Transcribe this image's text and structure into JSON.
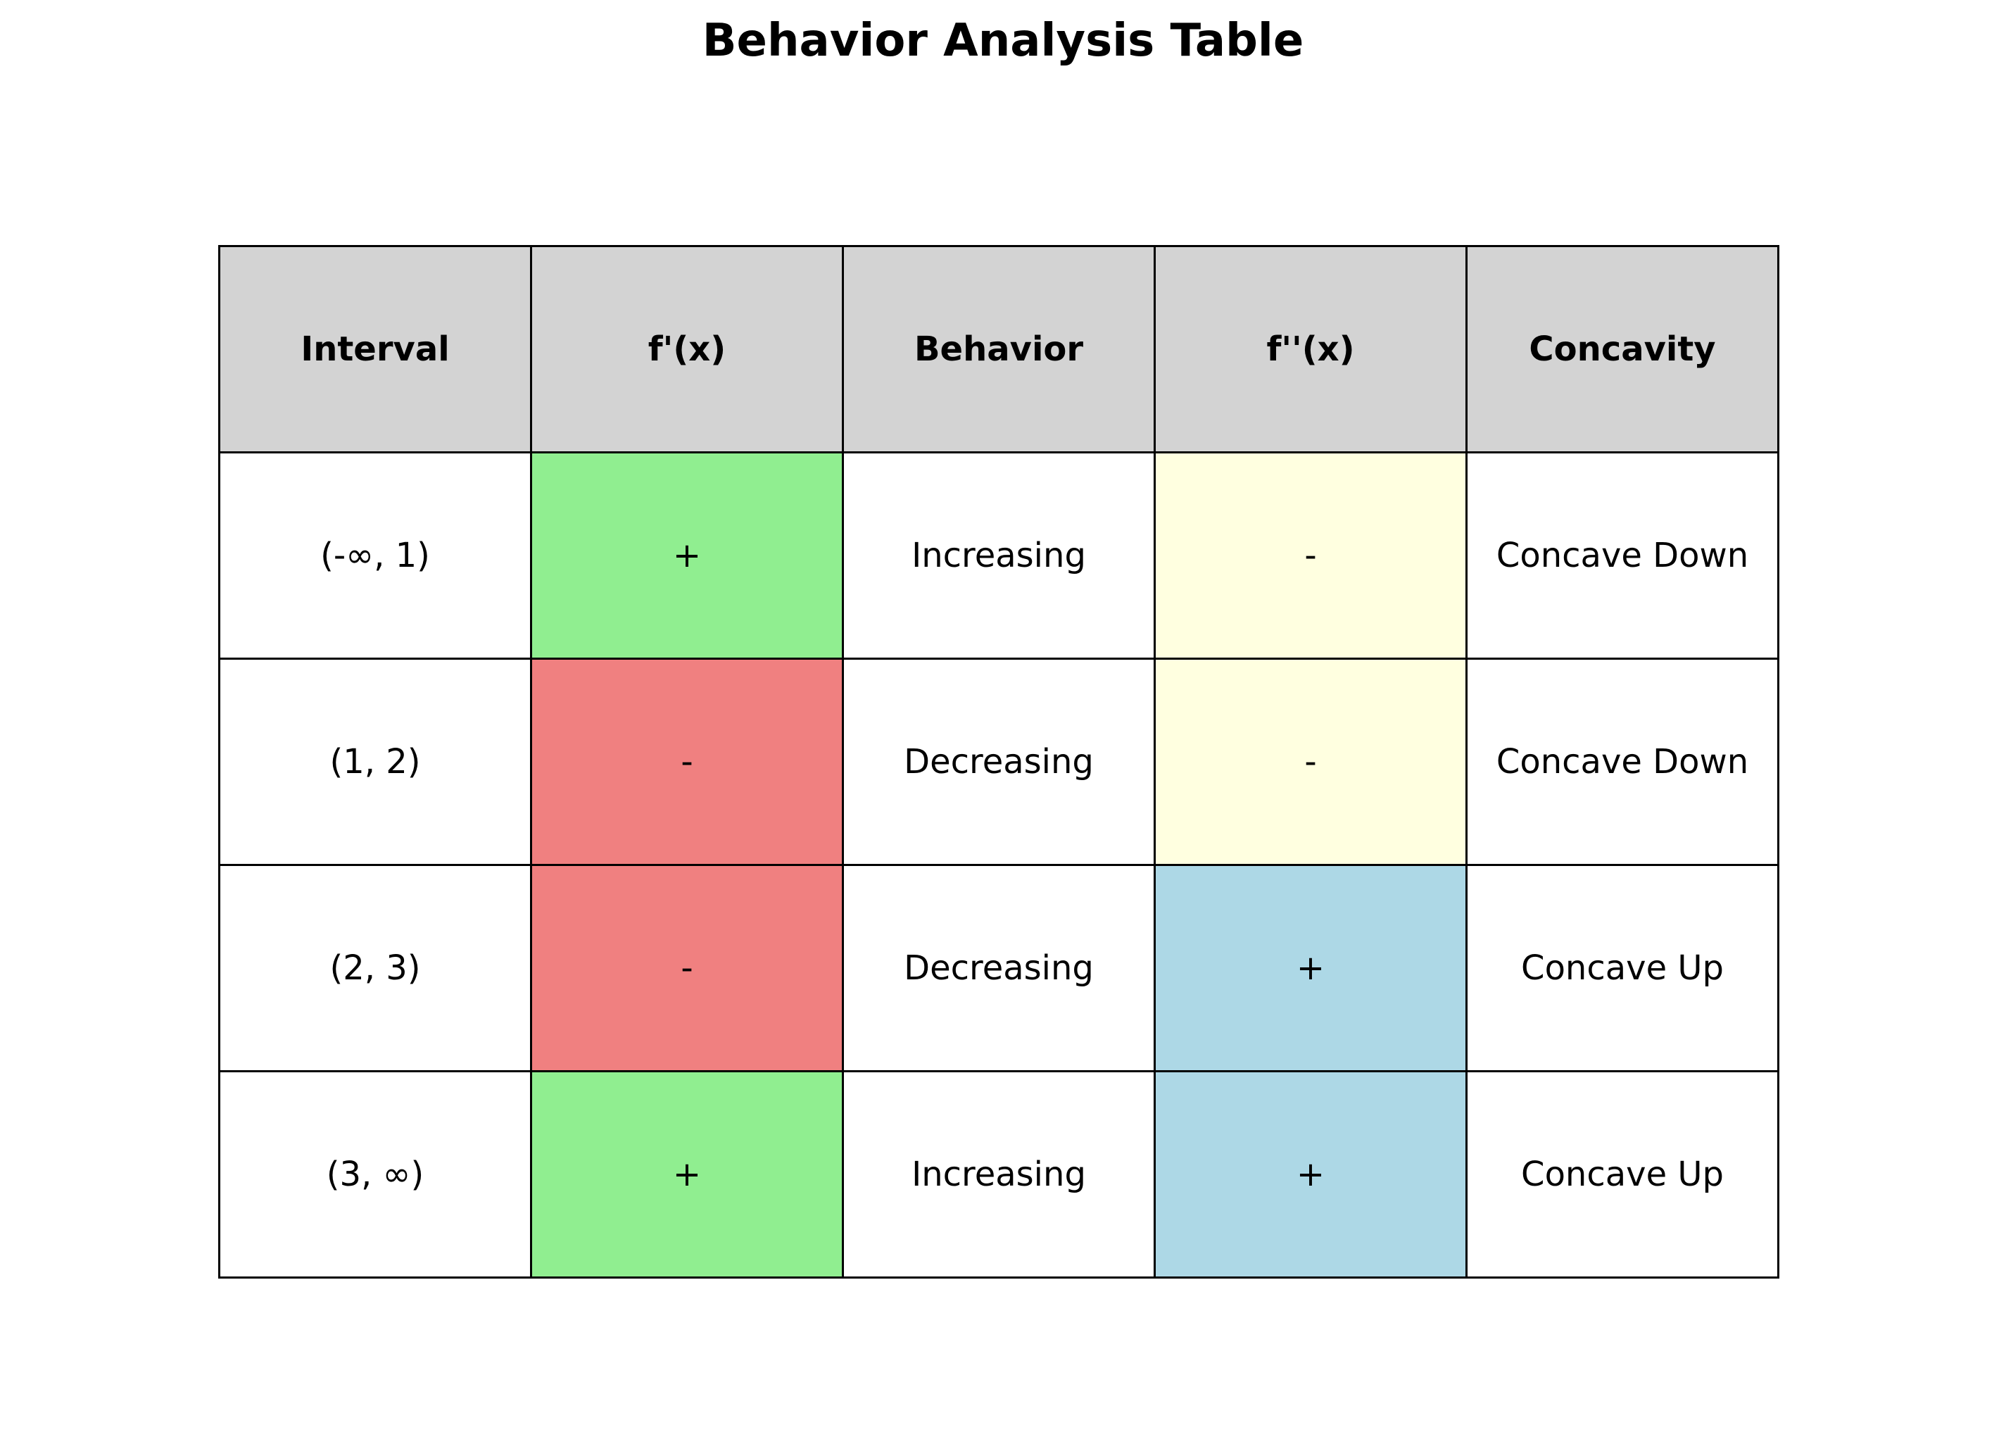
{
  "title": "Behavior Analysis Table",
  "chart_data": {
    "type": "table",
    "title": "Behavior Analysis Table",
    "columns": [
      "Interval",
      "f'(x)",
      "Behavior",
      "f''(x)",
      "Concavity"
    ],
    "rows": [
      [
        "(-∞, 1)",
        "+",
        "Increasing",
        "-",
        "Concave Down"
      ],
      [
        "(1, 2)",
        "-",
        "Decreasing",
        "-",
        "Concave Down"
      ],
      [
        "(2, 3)",
        "-",
        "Decreasing",
        "+",
        "Concave Up"
      ],
      [
        "(3, ∞)",
        "+",
        "Increasing",
        "+",
        "Concave Up"
      ]
    ],
    "cell_colors": [
      [
        "#ffffff",
        "#90ee90",
        "#ffffff",
        "#ffffe0",
        "#ffffff"
      ],
      [
        "#ffffff",
        "#f08080",
        "#ffffff",
        "#ffffe0",
        "#ffffff"
      ],
      [
        "#ffffff",
        "#f08080",
        "#ffffff",
        "#add8e6",
        "#ffffff"
      ],
      [
        "#ffffff",
        "#90ee90",
        "#ffffff",
        "#add8e6",
        "#ffffff"
      ]
    ],
    "header_color": "#d3d3d3"
  }
}
